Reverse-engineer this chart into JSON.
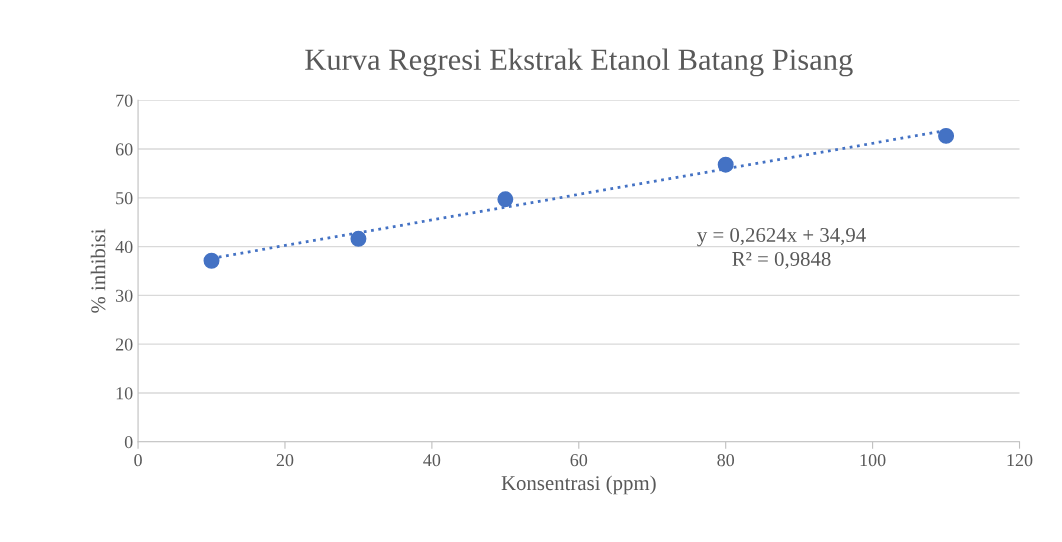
{
  "chart_data": {
    "type": "scatter",
    "title": "Kurva Regresi Ekstrak Etanol Batang Pisang",
    "xlabel": "Konsentrasi (ppm)",
    "ylabel": "% inhibisi",
    "x": [
      10,
      30,
      50,
      80,
      110
    ],
    "series": [
      {
        "type": "scatter",
        "color": "#4472c4",
        "values": [
          37.1,
          41.6,
          49.7,
          56.8,
          62.7
        ],
        "marker": "circle"
      },
      {
        "type": "line",
        "color": "#4472c4",
        "x": [
          10,
          110
        ],
        "values": [
          37.6,
          63.8
        ],
        "marker": "none",
        "line_style": "dotted"
      }
    ],
    "annotations": [
      "y = 0,2624x + 34,94",
      "R² = 0,9848"
    ],
    "xlim": [
      0,
      120
    ],
    "xticks": [
      0,
      20,
      40,
      60,
      80,
      100,
      120
    ],
    "ylim": [
      0,
      70
    ],
    "yticks": [
      0,
      10,
      20,
      30,
      40,
      50,
      60,
      70
    ],
    "grid": "y",
    "legend": false
  }
}
